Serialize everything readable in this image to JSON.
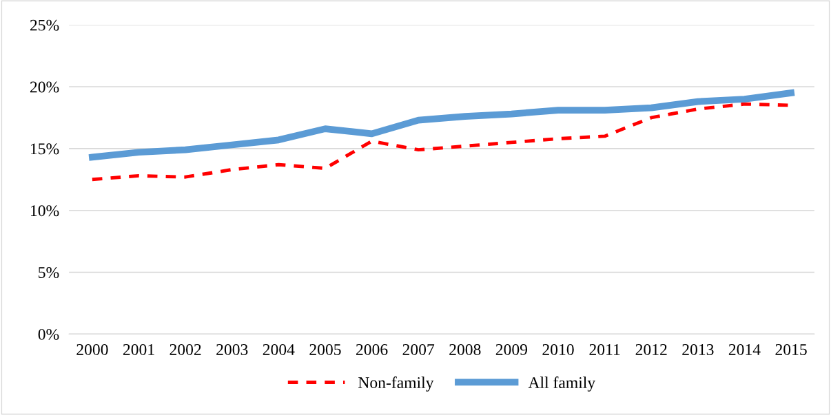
{
  "chart_data": {
    "type": "line",
    "categories": [
      "2000",
      "2001",
      "2002",
      "2003",
      "2004",
      "2005",
      "2006",
      "2007",
      "2008",
      "2009",
      "2010",
      "2011",
      "2012",
      "2013",
      "2014",
      "2015"
    ],
    "series": [
      {
        "name": "Non-family",
        "color": "#ff0000",
        "line_style": "dashed",
        "values": [
          12.5,
          12.8,
          12.7,
          13.3,
          13.7,
          13.4,
          15.6,
          14.9,
          15.2,
          15.5,
          15.8,
          16.0,
          17.5,
          18.2,
          18.6,
          18.5
        ]
      },
      {
        "name": "All family",
        "color": "#5b9bd5",
        "line_style": "solid",
        "values": [
          14.3,
          14.7,
          14.9,
          15.3,
          15.7,
          16.6,
          16.2,
          17.3,
          17.6,
          17.8,
          18.1,
          18.1,
          18.3,
          18.8,
          19.0,
          19.5
        ]
      }
    ],
    "ylim": [
      0,
      25
    ],
    "yticks": [
      {
        "value": 0,
        "label": "0%"
      },
      {
        "value": 5,
        "label": "5%"
      },
      {
        "value": 10,
        "label": "10%"
      },
      {
        "value": 15,
        "label": "15%"
      },
      {
        "value": 20,
        "label": "20%"
      },
      {
        "value": 25,
        "label": "25%"
      }
    ],
    "grid": "y",
    "legend": "bottom",
    "marker": "none"
  }
}
